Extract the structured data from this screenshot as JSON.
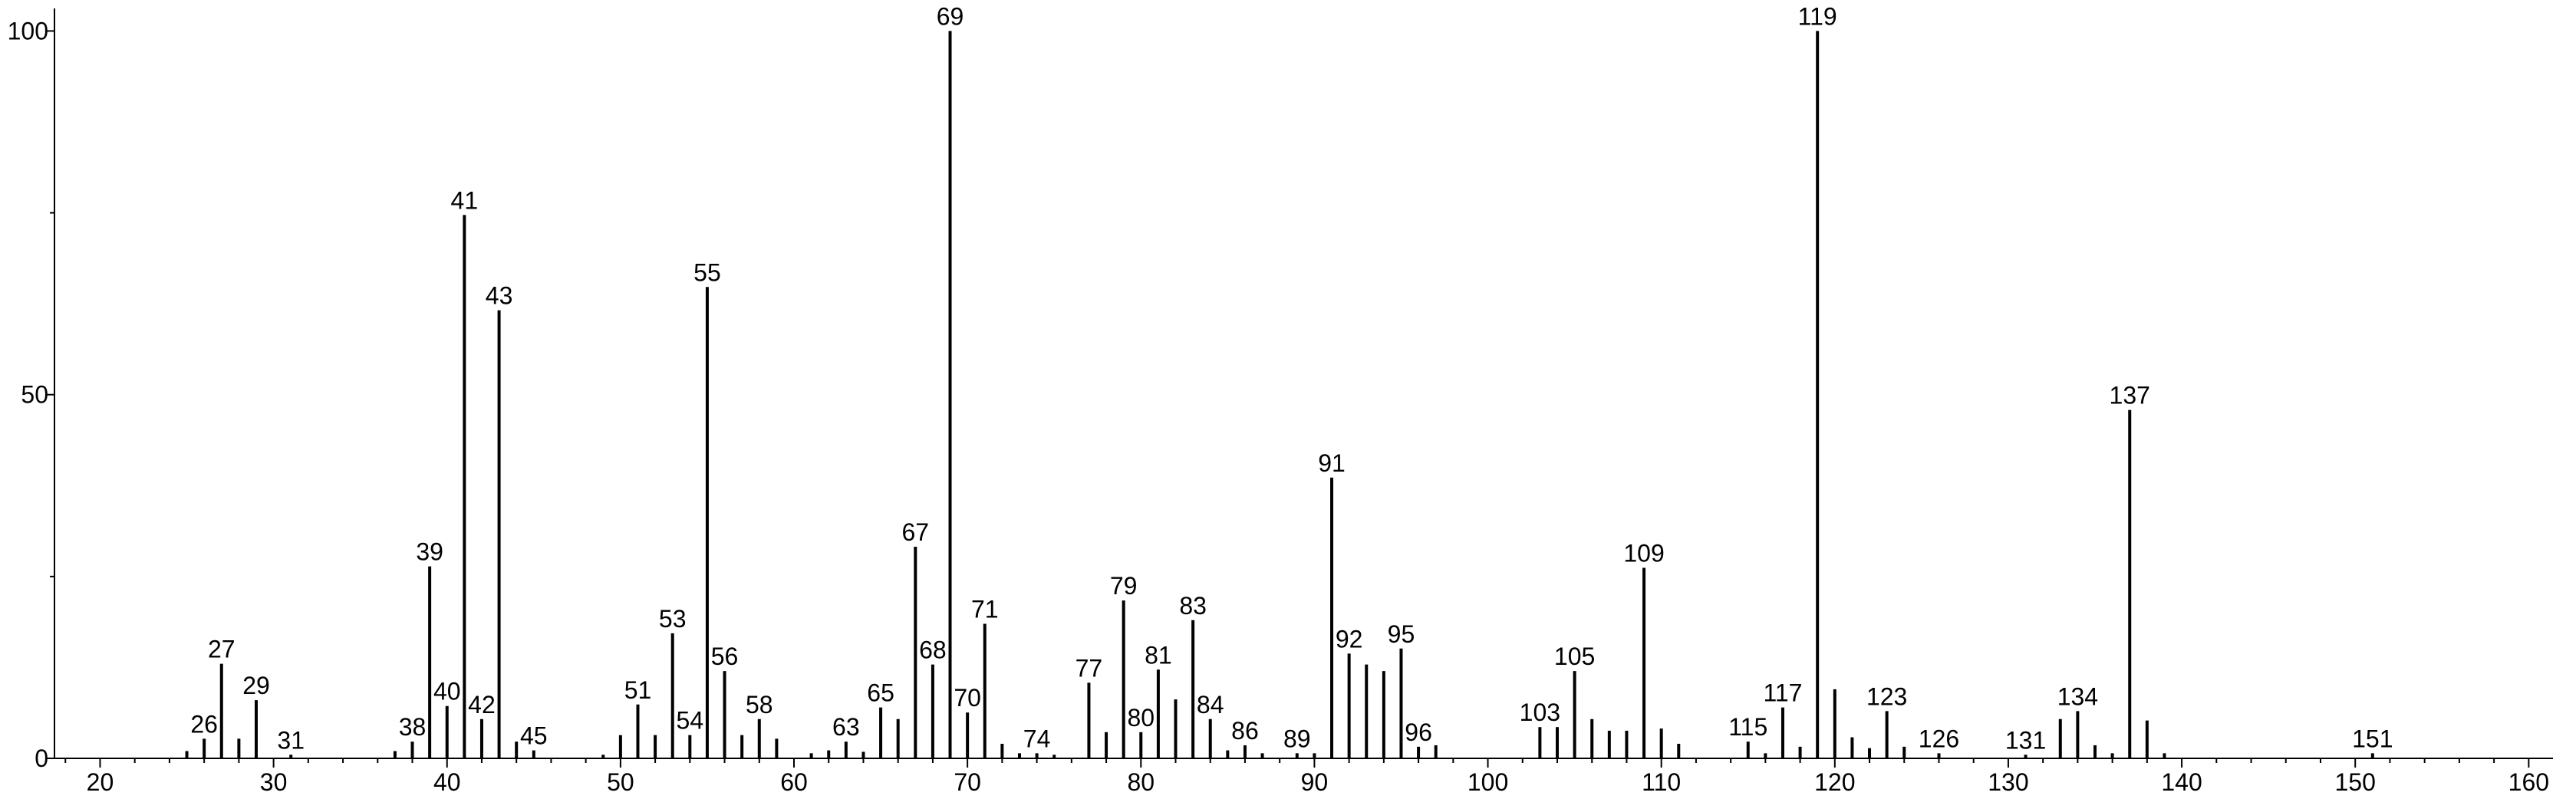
{
  "chart_data": {
    "type": "stem",
    "color": "#000000",
    "x": [
      25,
      26,
      27,
      28,
      29,
      31,
      37,
      38,
      39,
      40,
      41,
      42,
      43,
      44,
      45,
      49,
      50,
      51,
      52,
      53,
      54,
      55,
      56,
      57,
      58,
      59,
      61,
      62,
      63,
      64,
      65,
      66,
      67,
      68,
      69,
      70,
      71,
      72,
      73,
      74,
      75,
      77,
      78,
      79,
      80,
      81,
      82,
      83,
      84,
      85,
      86,
      87,
      89,
      90,
      91,
      92,
      93,
      94,
      95,
      96,
      97,
      103,
      104,
      105,
      106,
      107,
      108,
      109,
      110,
      111,
      115,
      116,
      117,
      118,
      119,
      120,
      121,
      122,
      123,
      124,
      126,
      131,
      133,
      134,
      135,
      136,
      137,
      138,
      139,
      151
    ],
    "values": [
      1,
      2.7,
      13,
      2.7,
      8,
      0.5,
      1,
      2.3,
      26.4,
      7.2,
      74.7,
      5.4,
      61.6,
      2.3,
      1.1,
      0.5,
      3.2,
      7.4,
      3.2,
      17.2,
      3.2,
      64.8,
      12,
      3.2,
      5.4,
      2.7,
      0.7,
      1.1,
      2.3,
      0.9,
      7,
      5.4,
      29.1,
      12.9,
      100,
      6.3,
      18.5,
      2,
      0.7,
      0.7,
      0.5,
      10.4,
      3.6,
      21.7,
      3.6,
      12.2,
      8.1,
      19,
      5.4,
      1.1,
      1.8,
      0.7,
      0.7,
      0.7,
      38.6,
      14.4,
      12.9,
      12,
      15.1,
      1.6,
      1.8,
      4.3,
      4.3,
      12,
      5.4,
      3.8,
      3.8,
      26.2,
      4.1,
      2,
      2.3,
      0.7,
      7,
      1.6,
      100,
      9.5,
      2.9,
      1.4,
      6.5,
      1.6,
      0.7,
      0.5,
      5.4,
      6.5,
      1.8,
      0.7,
      47.9,
      5.2,
      0.7,
      0.7
    ],
    "labeled": [
      false,
      true,
      true,
      false,
      true,
      true,
      false,
      true,
      true,
      true,
      true,
      true,
      true,
      false,
      true,
      false,
      false,
      true,
      false,
      true,
      true,
      true,
      true,
      false,
      true,
      false,
      false,
      false,
      true,
      false,
      true,
      false,
      true,
      true,
      true,
      true,
      true,
      false,
      false,
      true,
      false,
      true,
      false,
      true,
      true,
      true,
      false,
      true,
      true,
      false,
      true,
      false,
      true,
      false,
      true,
      true,
      false,
      false,
      true,
      true,
      false,
      true,
      false,
      true,
      false,
      false,
      false,
      true,
      false,
      false,
      true,
      false,
      true,
      false,
      true,
      false,
      false,
      false,
      true,
      false,
      true,
      true,
      false,
      true,
      false,
      false,
      true,
      false,
      false,
      true
    ],
    "xlim": [
      17.37,
      161.4
    ],
    "ylim": [
      0,
      103.1
    ],
    "xticks": [
      20,
      30,
      40,
      50,
      60,
      70,
      80,
      90,
      100,
      110,
      120,
      130,
      140,
      150,
      160
    ],
    "xminor_ticks": [
      18,
      22,
      24,
      26,
      28,
      32,
      34,
      36,
      38,
      42,
      44,
      46,
      48,
      52,
      54,
      56,
      58,
      62,
      64,
      66,
      68,
      72,
      74,
      76,
      78,
      82,
      84,
      86,
      88,
      92,
      94,
      96,
      98,
      102,
      104,
      106,
      108,
      112,
      114,
      116,
      118,
      122,
      124,
      126,
      128,
      132,
      134,
      136,
      138,
      142,
      144,
      146,
      148,
      152,
      154,
      156,
      158
    ],
    "yticks": [
      0,
      50,
      100
    ],
    "yminor_ticks": [
      25,
      75
    ]
  }
}
